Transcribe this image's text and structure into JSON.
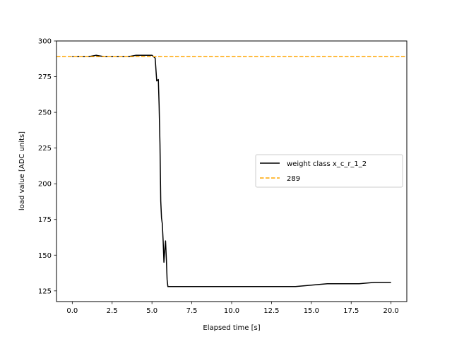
{
  "chart_data": {
    "type": "line",
    "xlabel": "Elapsed time [s]",
    "ylabel": "load value [ADC units]",
    "xlim": [
      -0.99,
      20.99
    ],
    "ylim": [
      117.5,
      300
    ],
    "xticks": [
      0.0,
      2.5,
      5.0,
      7.5,
      10.0,
      12.5,
      15.0,
      17.5,
      20.0
    ],
    "xtick_labels": [
      "0.0",
      "2.5",
      "5.0",
      "7.5",
      "10.0",
      "12.5",
      "15.0",
      "17.5",
      "20.0"
    ],
    "yticks": [
      125,
      150,
      175,
      200,
      225,
      250,
      275,
      300
    ],
    "ytick_labels": [
      "125",
      "150",
      "175",
      "200",
      "225",
      "250",
      "275",
      "300"
    ],
    "grid": false,
    "legend_position": "center-right",
    "series": [
      {
        "name": "weight class x_c_r_1_2",
        "style": "solid",
        "color": "#000000",
        "x": [
          0.0,
          0.5,
          1.0,
          1.5,
          2.0,
          2.5,
          3.0,
          3.5,
          4.0,
          4.5,
          5.0,
          5.2,
          5.3,
          5.4,
          5.45,
          5.5,
          5.55,
          5.6,
          5.65,
          5.7,
          5.75,
          5.8,
          5.85,
          5.9,
          5.95,
          6.0,
          6.05,
          6.1,
          6.2,
          6.5,
          7.0,
          8.0,
          9.0,
          10.0,
          11.0,
          12.0,
          13.0,
          14.0,
          15.0,
          16.0,
          17.0,
          18.0,
          19.0,
          20.0
        ],
        "y": [
          289,
          289,
          289,
          290,
          289,
          289,
          289,
          289,
          290,
          290,
          290,
          288,
          272,
          273,
          255,
          228,
          188,
          176,
          172,
          160,
          145,
          153,
          160,
          148,
          133,
          128,
          128,
          128,
          128,
          128,
          128,
          128,
          128,
          128,
          128,
          128,
          128,
          128,
          129,
          130,
          130,
          130,
          131,
          131
        ]
      },
      {
        "name": "289",
        "style": "dashed",
        "color": "#ffa500",
        "x": [
          -0.99,
          20.99
        ],
        "y": [
          289,
          289
        ]
      }
    ]
  }
}
